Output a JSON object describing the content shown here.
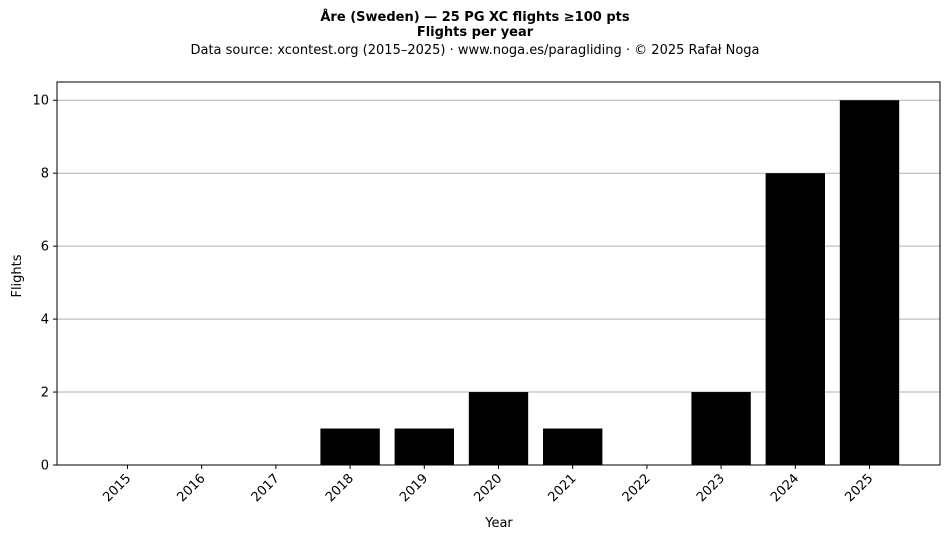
{
  "chart_data": {
    "type": "bar",
    "title": "Åre (Sweden)  —  25 PG XC flights ≥100 pts",
    "subtitle": "Flights per year",
    "source_note": "Data source: xcontest.org (2015–2025)  ·  www.noga.es/paragliding  ·  © 2025 Rafał Noga",
    "xlabel": "Year",
    "ylabel": "Flights",
    "categories": [
      "2015",
      "2016",
      "2017",
      "2018",
      "2019",
      "2020",
      "2021",
      "2022",
      "2023",
      "2024",
      "2025"
    ],
    "values": [
      0,
      0,
      0,
      1,
      1,
      2,
      1,
      0,
      2,
      8,
      10
    ],
    "ylim": [
      0,
      10.5
    ],
    "yticks": [
      0,
      2,
      4,
      6,
      8,
      10
    ],
    "grid": "horizontal",
    "bar_color": "#000000",
    "grid_color": "#b0b0b0"
  }
}
